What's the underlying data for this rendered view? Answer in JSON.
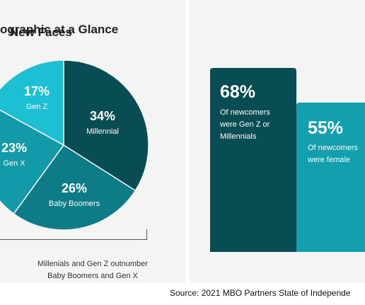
{
  "left_panel": {
    "title": "ographic at a Glance",
    "caption_line1": "Millenials and Gen Z outnumber",
    "caption_line2": "Baby Boomers and Gen X"
  },
  "right_panel": {
    "title": "New Faces",
    "bars": [
      {
        "value_label": "68%",
        "desc_lines": [
          "Of newcomers",
          "were Gen Z or",
          "Millennials"
        ]
      },
      {
        "value_label": "55%",
        "desc_lines": [
          "Of newcomers",
          "were female"
        ]
      }
    ]
  },
  "source": "Source: 2021 MBO Partners State of Independe",
  "colors": {
    "millennial": "#084c54",
    "baby_boomers": "#0d7c86",
    "gen_x": "#139aa8",
    "gen_z": "#1cc0d2",
    "bar_dark": "#084c54",
    "bar_light": "#12a0ae"
  },
  "chart_data": [
    {
      "type": "pie",
      "title": "ographic at a Glance",
      "slices": [
        {
          "label": "Millennial",
          "value": 34,
          "value_label": "34%",
          "color": "#084c54"
        },
        {
          "label": "Baby Boomers",
          "value": 26,
          "value_label": "26%",
          "color": "#0d7c86"
        },
        {
          "label": "Gen X",
          "value": 23,
          "value_label": "23%",
          "color": "#139aa8"
        },
        {
          "label": "Gen Z",
          "value": 17,
          "value_label": "17%",
          "color": "#1cc0d2"
        }
      ]
    },
    {
      "type": "bar",
      "title": "New Faces",
      "categories": [
        "Of newcomers were Gen Z or Millennials",
        "Of newcomers were female"
      ],
      "values": [
        68,
        55
      ]
    }
  ]
}
